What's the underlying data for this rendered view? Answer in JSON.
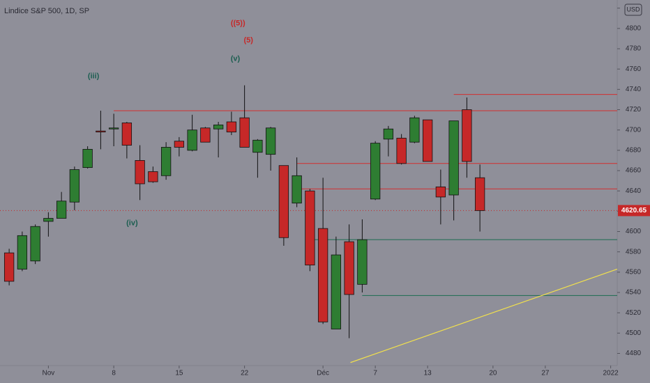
{
  "chart_data": {
    "type": "candlestick",
    "title": "Lindice S&P 500, 1D, SP",
    "currency": "USD",
    "up_color": "#2e7d32",
    "down_color": "#c62828",
    "open": [
      4579,
      4563,
      4571,
      4610,
      4613,
      4629,
      4663,
      4699,
      4701,
      4707,
      4670,
      4659,
      4655,
      4689,
      4680,
      4702,
      4701,
      4708,
      4712,
      4678,
      4676,
      4665,
      4628,
      4640,
      4603,
      4504,
      4590,
      4548,
      4632,
      4691,
      4692,
      4688,
      4710,
      4644,
      4636,
      4720,
      4653
    ],
    "high": [
      4583,
      4600,
      4607,
      4619,
      4639,
      4664,
      4684,
      4719,
      4716,
      4708,
      4685,
      4664,
      4688,
      4693,
      4715,
      4703,
      4708,
      4718,
      4744,
      4691,
      4703,
      4665,
      4673,
      4642,
      4653,
      4595,
      4607,
      4612,
      4689,
      4704,
      4696,
      4714,
      4710,
      4661,
      4709,
      4732,
      4666
    ],
    "low": [
      4547,
      4561,
      4568,
      4595,
      4613,
      4621,
      4662,
      4681,
      4684,
      4672,
      4631,
      4648,
      4651,
      4674,
      4679,
      4688,
      4673,
      4695,
      4683,
      4653,
      4660,
      4586,
      4624,
      4561,
      4509,
      4504,
      4495,
      4540,
      4631,
      4674,
      4666,
      4687,
      4669,
      4607,
      4611,
      4653,
      4600
    ],
    "close": [
      4551,
      4596,
      4605,
      4613,
      4630,
      4661,
      4681,
      4698,
      4702,
      4685,
      4647,
      4649,
      4683,
      4683,
      4700,
      4688,
      4705,
      4698,
      4683,
      4690,
      4702,
      4594,
      4655,
      4567,
      4511,
      4577,
      4538,
      4592,
      4687,
      4701,
      4667,
      4712,
      4669,
      4634,
      4709,
      4669,
      4620.65
    ],
    "last_price": 4620.65,
    "last_price_color": "#c62828",
    "xlim": [
      -0.7,
      46.5
    ],
    "xticks": [
      {
        "value": 3,
        "label": "Nov"
      },
      {
        "value": 8,
        "label": "8"
      },
      {
        "value": 13,
        "label": "15"
      },
      {
        "value": 18,
        "label": "22"
      },
      {
        "value": 24,
        "label": "Déc"
      },
      {
        "value": 28,
        "label": "7"
      },
      {
        "value": 32,
        "label": "13"
      },
      {
        "value": 37,
        "label": "20"
      },
      {
        "value": 41,
        "label": "27"
      },
      {
        "value": 46,
        "label": "2022"
      }
    ],
    "ylim": [
      4468,
      4828
    ],
    "yticks": [
      4480,
      4500,
      4520,
      4540,
      4560,
      4580,
      4600,
      4620,
      4640,
      4660,
      4680,
      4700,
      4720,
      4740,
      4760,
      4780,
      4800,
      4820
    ],
    "levels": [
      {
        "value": 4719,
        "from": 8,
        "color": "#d32f2f"
      },
      {
        "value": 4735,
        "from": 34,
        "color": "#d32f2f"
      },
      {
        "value": 4667,
        "from": 22,
        "color": "#d32f2f"
      },
      {
        "value": 4642,
        "from": 22,
        "color": "#d32f2f"
      },
      {
        "value": 4592,
        "from": 23,
        "color": "#1b6b50"
      },
      {
        "value": 4537,
        "from": 27,
        "color": "#1b6b50"
      }
    ],
    "trendline": {
      "x": [
        26.1,
        46.5
      ],
      "y": [
        4471,
        4563
      ],
      "color": "#f2e14c"
    },
    "annotations": [
      {
        "text": "((5))",
        "x": 17.5,
        "y": 4805,
        "color": "#c62828"
      },
      {
        "text": "(5)",
        "x": 18.3,
        "y": 4788,
        "color": "#c62828"
      },
      {
        "text": "(v)",
        "x": 17.3,
        "y": 4770,
        "color": "#1b5e50"
      },
      {
        "text": "(iii)",
        "x": 6.45,
        "y": 4753,
        "color": "#1b5e50"
      },
      {
        "text": "(iv)",
        "x": 9.4,
        "y": 4608,
        "color": "#1b5e50"
      }
    ]
  }
}
